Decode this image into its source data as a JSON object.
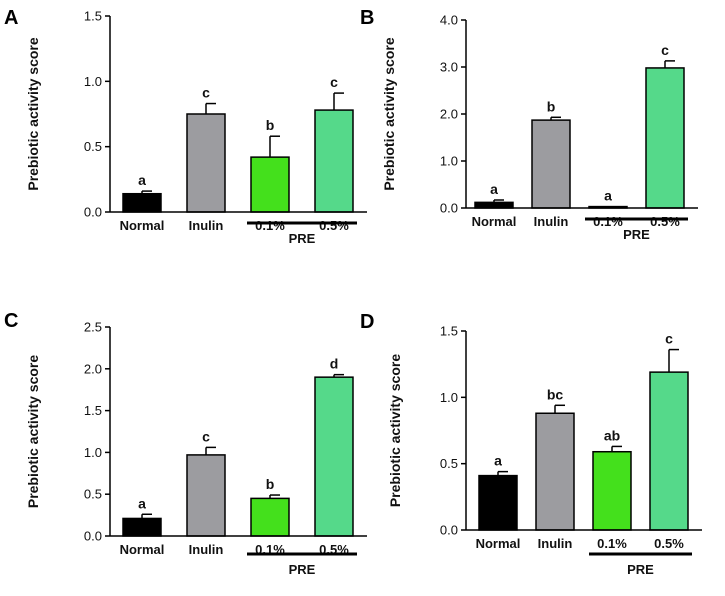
{
  "chart_data": [
    {
      "type": "bar",
      "panel": "A",
      "ylabel": "Prebiotic activity score",
      "categories": [
        "Normal",
        "Inulin",
        "0.1%",
        "0.5%"
      ],
      "values": [
        0.14,
        0.75,
        0.42,
        0.78
      ],
      "errors": [
        0.02,
        0.08,
        0.16,
        0.13
      ],
      "significance": [
        "a",
        "c",
        "b",
        "c"
      ],
      "colors": [
        "#000000",
        "#9c9ca0",
        "#44e01c",
        "#55d98a"
      ],
      "ylim": [
        0,
        1.5
      ],
      "yticks": [
        "0.0",
        "0.5",
        "1.0",
        "1.5"
      ],
      "group_label": "PRE",
      "grid": false
    },
    {
      "type": "bar",
      "panel": "B",
      "ylabel": "Prebiotic activity score",
      "categories": [
        "Normal",
        "Inulin",
        "0.1%",
        "0.5%"
      ],
      "values": [
        0.12,
        1.87,
        0.03,
        2.98
      ],
      "errors": [
        0.05,
        0.06,
        0.0,
        0.15
      ],
      "significance": [
        "a",
        "b",
        "a",
        "c"
      ],
      "colors": [
        "#000000",
        "#9c9ca0",
        "#44e01c",
        "#55d98a"
      ],
      "ylim": [
        0,
        4.0
      ],
      "yticks": [
        "0.0",
        "1.0",
        "2.0",
        "3.0",
        "4.0"
      ],
      "group_label": "PRE",
      "grid": false
    },
    {
      "type": "bar",
      "panel": "C",
      "ylabel": "Prebiotic activity score",
      "categories": [
        "Normal",
        "Inulin",
        "0.1%",
        "0.5%"
      ],
      "values": [
        0.21,
        0.97,
        0.45,
        1.9
      ],
      "errors": [
        0.05,
        0.09,
        0.04,
        0.03
      ],
      "significance": [
        "a",
        "c",
        "b",
        "d"
      ],
      "colors": [
        "#000000",
        "#9c9ca0",
        "#44e01c",
        "#55d98a"
      ],
      "ylim": [
        0,
        2.5
      ],
      "yticks": [
        "0.0",
        "0.5",
        "1.0",
        "1.5",
        "2.0",
        "2.5"
      ],
      "group_label": "PRE",
      "grid": false
    },
    {
      "type": "bar",
      "panel": "D",
      "ylabel": "Prebiotic activity score",
      "categories": [
        "Normal",
        "Inulin",
        "0.1%",
        "0.5%"
      ],
      "values": [
        0.41,
        0.88,
        0.59,
        1.19
      ],
      "errors": [
        0.03,
        0.06,
        0.04,
        0.17
      ],
      "significance": [
        "a",
        "bc",
        "ab",
        "c"
      ],
      "colors": [
        "#000000",
        "#9c9ca0",
        "#44e01c",
        "#55d98a"
      ],
      "ylim": [
        0,
        1.5
      ],
      "yticks": [
        "0.0",
        "0.5",
        "1.0",
        "1.5"
      ],
      "group_label": "PRE",
      "grid": false
    }
  ]
}
